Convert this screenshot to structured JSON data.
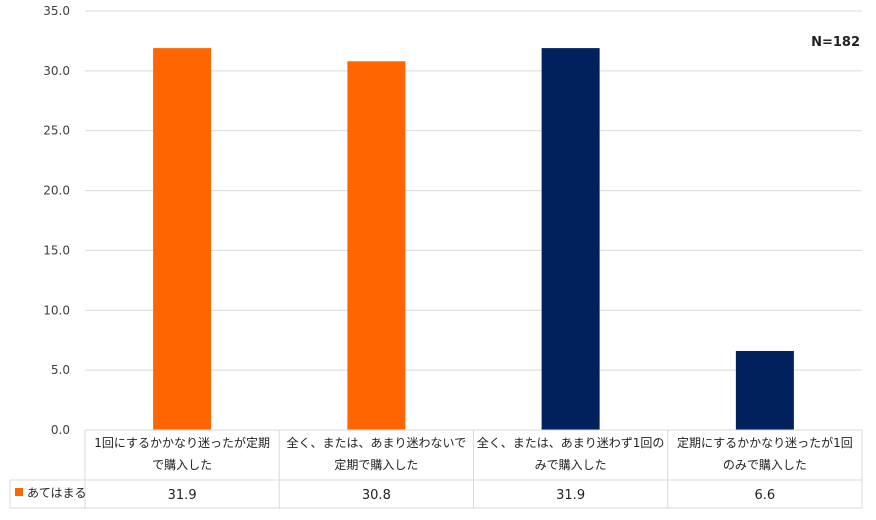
{
  "chart_data": {
    "type": "bar",
    "note": "N=182",
    "ylim": [
      0,
      35
    ],
    "yticks": [
      "0.0",
      "5.0",
      "10.0",
      "15.0",
      "20.0",
      "25.0",
      "30.0",
      "35.0"
    ],
    "categories": [
      [
        "1回にするかかなり迷ったが定期",
        "で購入した"
      ],
      [
        "全く、または、あまり迷わないで",
        "定期で購入した"
      ],
      [
        "全く、または、あまり迷わず1回の",
        "みで購入した"
      ],
      [
        "定期にするかかなり迷ったが1回",
        "のみで購入した"
      ]
    ],
    "series": [
      {
        "name": "あてはまる",
        "values": [
          31.9,
          30.8,
          31.9,
          6.6
        ],
        "labels": [
          "31.9",
          "30.8",
          "31.9",
          "6.6"
        ]
      }
    ],
    "legend_color": "#ff6600",
    "bar_colors": [
      "#ff6600",
      "#ff6600",
      "#00215b",
      "#00215b"
    ],
    "grid": true,
    "legend": "data-table"
  }
}
